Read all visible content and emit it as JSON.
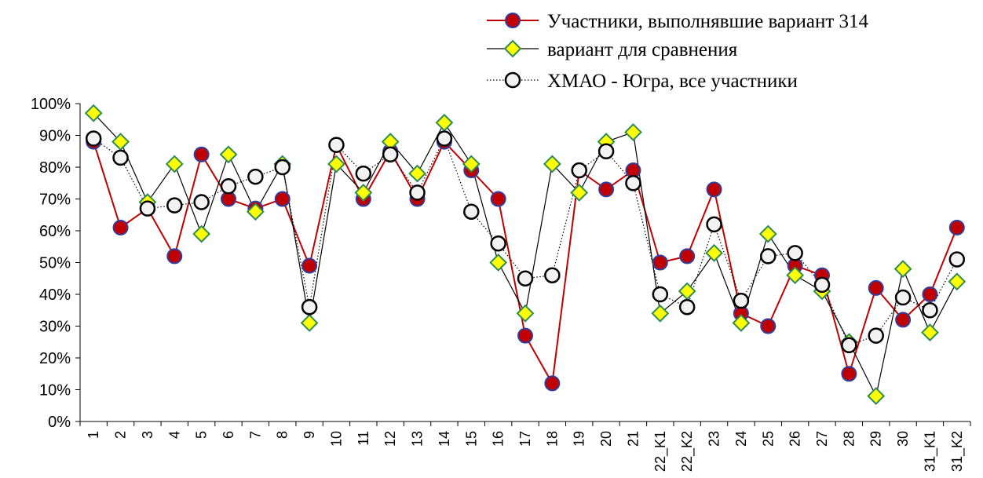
{
  "chart_data": {
    "type": "line",
    "categories": [
      "1",
      "2",
      "3",
      "4",
      "5",
      "6",
      "7",
      "8",
      "9",
      "10",
      "11",
      "12",
      "13",
      "14",
      "15",
      "16",
      "17",
      "18",
      "19",
      "20",
      "21",
      "22_K1",
      "22_K2",
      "23",
      "24",
      "25",
      "26",
      "27",
      "28",
      "29",
      "30",
      "31_K1",
      "31_K2"
    ],
    "ylim": [
      0,
      100
    ],
    "yticks": [
      "0%",
      "10%",
      "20%",
      "30%",
      "40%",
      "50%",
      "60%",
      "70%",
      "80%",
      "90%",
      "100%"
    ],
    "grid": false,
    "legend_position": "top-right",
    "series": [
      {
        "name": "Участники, выполнявшие вариант 314",
        "color": "#c00000",
        "marker": "circle",
        "marker_fill": "#c00000",
        "marker_stroke": "#2f3fa0",
        "values": [
          88,
          61,
          67,
          52,
          84,
          70,
          67,
          70,
          49,
          87,
          70,
          85,
          70,
          88,
          79,
          70,
          27,
          12,
          79,
          73,
          79,
          50,
          52,
          73,
          34,
          30,
          49,
          46,
          15,
          42,
          32,
          40,
          61
        ]
      },
      {
        "name": "вариант для сравнения",
        "color": "#000000",
        "marker": "diamond",
        "marker_fill": "#ffff00",
        "marker_stroke": "#2e8b57",
        "values": [
          97,
          88,
          69,
          81,
          59,
          84,
          66,
          81,
          31,
          81,
          72,
          88,
          78,
          94,
          81,
          50,
          34,
          81,
          72,
          88,
          91,
          34,
          41,
          53,
          31,
          59,
          46,
          41,
          25,
          8,
          48,
          28,
          44
        ]
      },
      {
        "name": "ХМАО - Югра, все участники",
        "color": "#000000",
        "marker": "circle-open",
        "marker_fill": "#f2f2f2",
        "marker_stroke": "#000000",
        "values": [
          89,
          83,
          67,
          68,
          69,
          74,
          77,
          80,
          36,
          87,
          78,
          84,
          72,
          89,
          66,
          56,
          45,
          46,
          79,
          85,
          75,
          40,
          36,
          62,
          38,
          52,
          53,
          43,
          24,
          27,
          39,
          35,
          51
        ]
      }
    ]
  }
}
